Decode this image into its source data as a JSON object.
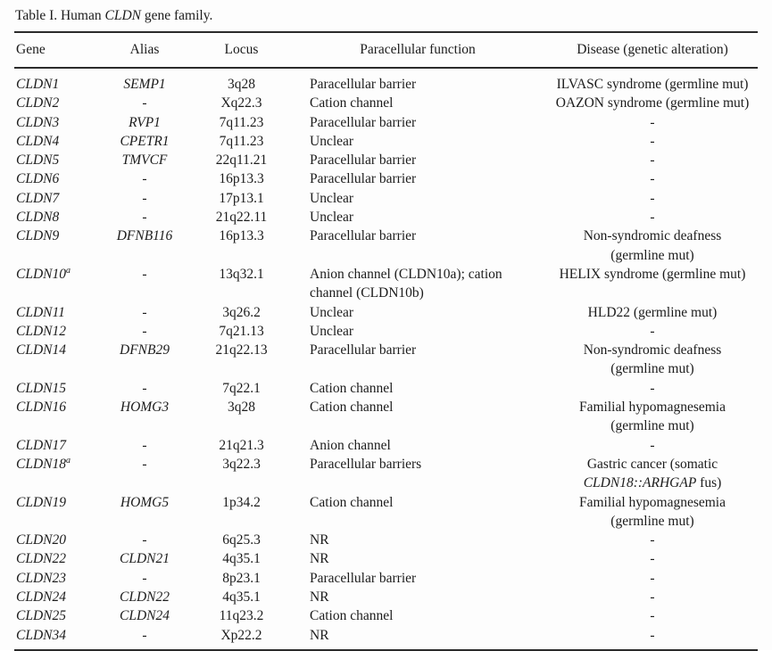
{
  "page": {
    "background": "#fdfdfd",
    "text_color": "#1c1c1c",
    "rule_color": "#2b2b2b"
  },
  "title": {
    "segments": [
      {
        "text": "Table I. Human "
      },
      {
        "text": "CLDN",
        "italic": true
      },
      {
        "text": " gene family."
      }
    ]
  },
  "table": {
    "headers": [
      "Gene",
      "Alias",
      "Locus",
      "Paracellular function",
      "Disease (genetic alteration)"
    ],
    "rows": [
      {
        "gene": "CLDN1",
        "sup": "",
        "alias": "SEMP1",
        "locus": "3q28",
        "function": "Paracellular barrier",
        "disease": [
          {
            "text": "ILVASC syndrome (germline mut)"
          }
        ]
      },
      {
        "gene": "CLDN2",
        "sup": "",
        "alias": "-",
        "locus": "Xq22.3",
        "function": "Cation channel",
        "disease": [
          {
            "text": "OAZON syndrome (germline mut)"
          }
        ]
      },
      {
        "gene": "CLDN3",
        "sup": "",
        "alias": "RVP1",
        "locus": "7q11.23",
        "function": "Paracellular barrier",
        "disease": [
          {
            "text": "-"
          }
        ]
      },
      {
        "gene": "CLDN4",
        "sup": "",
        "alias": "CPETR1",
        "locus": "7q11.23",
        "function": "Unclear",
        "disease": [
          {
            "text": "-"
          }
        ]
      },
      {
        "gene": "CLDN5",
        "sup": "",
        "alias": "TMVCF",
        "locus": "22q11.21",
        "function": "Paracellular barrier",
        "disease": [
          {
            "text": "-"
          }
        ]
      },
      {
        "gene": "CLDN6",
        "sup": "",
        "alias": "-",
        "locus": "16p13.3",
        "function": "Paracellular barrier",
        "disease": [
          {
            "text": "-"
          }
        ]
      },
      {
        "gene": "CLDN7",
        "sup": "",
        "alias": "-",
        "locus": "17p13.1",
        "function": "Unclear",
        "disease": [
          {
            "text": "-"
          }
        ]
      },
      {
        "gene": "CLDN8",
        "sup": "",
        "alias": "-",
        "locus": "21q22.11",
        "function": "Unclear",
        "disease": [
          {
            "text": "-"
          }
        ]
      },
      {
        "gene": "CLDN9",
        "sup": "",
        "alias": "DFNB116",
        "locus": "16p13.3",
        "function": "Paracellular barrier",
        "disease": [
          {
            "text": "Non-syndromic deafness\n(germline mut)"
          }
        ]
      },
      {
        "gene": "CLDN10",
        "sup": "a",
        "alias": "-",
        "locus": "13q32.1",
        "function": "Anion channel (CLDN10a); cation\nchannel (CLDN10b)",
        "disease": [
          {
            "text": "HELIX syndrome (germline mut)"
          }
        ]
      },
      {
        "gene": "CLDN11",
        "sup": "",
        "alias": "-",
        "locus": "3q26.2",
        "function": "Unclear",
        "disease": [
          {
            "text": "HLD22 (germline mut)"
          }
        ]
      },
      {
        "gene": "CLDN12",
        "sup": "",
        "alias": "-",
        "locus": "7q21.13",
        "function": "Unclear",
        "disease": [
          {
            "text": "-"
          }
        ]
      },
      {
        "gene": "CLDN14",
        "sup": "",
        "alias": "DFNB29",
        "locus": "21q22.13",
        "function": "Paracellular barrier",
        "disease": [
          {
            "text": "Non-syndromic deafness\n(germline mut)"
          }
        ]
      },
      {
        "gene": "CLDN15",
        "sup": "",
        "alias": "-",
        "locus": "7q22.1",
        "function": "Cation channel",
        "disease": [
          {
            "text": "-"
          }
        ]
      },
      {
        "gene": "CLDN16",
        "sup": "",
        "alias": "HOMG3",
        "locus": "3q28",
        "function": "Cation channel",
        "disease": [
          {
            "text": "Familial hypomagnesemia\n(germline mut)"
          }
        ]
      },
      {
        "gene": "CLDN17",
        "sup": "",
        "alias": "-",
        "locus": "21q21.3",
        "function": "Anion channel",
        "disease": [
          {
            "text": "-"
          }
        ]
      },
      {
        "gene": "CLDN18",
        "sup": "a",
        "alias": "-",
        "locus": "3q22.3",
        "function": "Paracellular barriers",
        "disease": [
          {
            "text": "Gastric cancer (somatic\n"
          },
          {
            "text": "CLDN18::ARHGAP",
            "italic": true
          },
          {
            "text": " fus)"
          }
        ]
      },
      {
        "gene": "CLDN19",
        "sup": "",
        "alias": "HOMG5",
        "locus": "1p34.2",
        "function": "Cation channel",
        "disease": [
          {
            "text": "Familial hypomagnesemia\n(germline mut)"
          }
        ]
      },
      {
        "gene": "CLDN20",
        "sup": "",
        "alias": "-",
        "locus": "6q25.3",
        "function": "NR",
        "disease": [
          {
            "text": "-"
          }
        ]
      },
      {
        "gene": "CLDN22",
        "sup": "",
        "alias": "CLDN21",
        "locus": "4q35.1",
        "function": "NR",
        "disease": [
          {
            "text": "-"
          }
        ]
      },
      {
        "gene": "CLDN23",
        "sup": "",
        "alias": "-",
        "locus": "8p23.1",
        "function": "Paracellular barrier",
        "disease": [
          {
            "text": "-"
          }
        ]
      },
      {
        "gene": "CLDN24",
        "sup": "",
        "alias": "CLDN22",
        "locus": "4q35.1",
        "function": "NR",
        "disease": [
          {
            "text": "-"
          }
        ]
      },
      {
        "gene": "CLDN25",
        "sup": "",
        "alias": "CLDN24",
        "locus": "11q23.2",
        "function": "Cation channel",
        "disease": [
          {
            "text": "-"
          }
        ]
      },
      {
        "gene": "CLDN34",
        "sup": "",
        "alias": "-",
        "locus": "Xp22.2",
        "function": "NR",
        "disease": [
          {
            "text": "-"
          }
        ]
      }
    ]
  }
}
